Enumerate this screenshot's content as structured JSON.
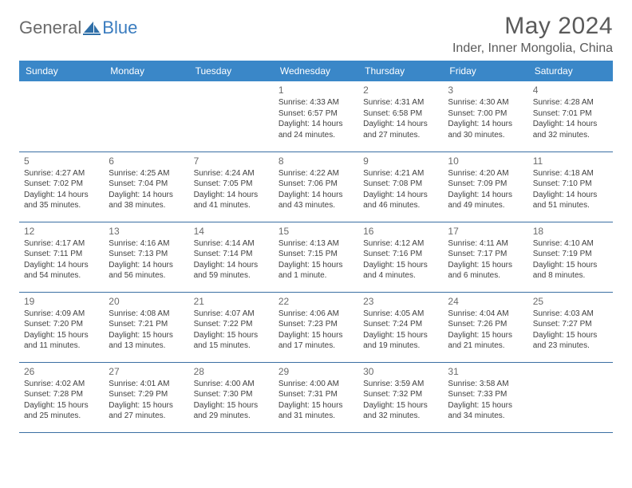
{
  "logo": {
    "part1": "General",
    "part2": "Blue"
  },
  "title": "May 2024",
  "location": "Inder, Inner Mongolia, China",
  "colors": {
    "header_bg": "#3a87c8",
    "header_text": "#ffffff",
    "cell_border": "#3a6fa3",
    "body_text": "#414141",
    "muted_text": "#6a6a6a",
    "logo_gray": "#6a6a6a",
    "logo_blue": "#3a7cbf",
    "page_bg": "#ffffff"
  },
  "day_headers": [
    "Sunday",
    "Monday",
    "Tuesday",
    "Wednesday",
    "Thursday",
    "Friday",
    "Saturday"
  ],
  "weeks": [
    [
      null,
      null,
      null,
      {
        "n": "1",
        "sunrise": "Sunrise: 4:33 AM",
        "sunset": "Sunset: 6:57 PM",
        "day1": "Daylight: 14 hours",
        "day2": "and 24 minutes."
      },
      {
        "n": "2",
        "sunrise": "Sunrise: 4:31 AM",
        "sunset": "Sunset: 6:58 PM",
        "day1": "Daylight: 14 hours",
        "day2": "and 27 minutes."
      },
      {
        "n": "3",
        "sunrise": "Sunrise: 4:30 AM",
        "sunset": "Sunset: 7:00 PM",
        "day1": "Daylight: 14 hours",
        "day2": "and 30 minutes."
      },
      {
        "n": "4",
        "sunrise": "Sunrise: 4:28 AM",
        "sunset": "Sunset: 7:01 PM",
        "day1": "Daylight: 14 hours",
        "day2": "and 32 minutes."
      }
    ],
    [
      {
        "n": "5",
        "sunrise": "Sunrise: 4:27 AM",
        "sunset": "Sunset: 7:02 PM",
        "day1": "Daylight: 14 hours",
        "day2": "and 35 minutes."
      },
      {
        "n": "6",
        "sunrise": "Sunrise: 4:25 AM",
        "sunset": "Sunset: 7:04 PM",
        "day1": "Daylight: 14 hours",
        "day2": "and 38 minutes."
      },
      {
        "n": "7",
        "sunrise": "Sunrise: 4:24 AM",
        "sunset": "Sunset: 7:05 PM",
        "day1": "Daylight: 14 hours",
        "day2": "and 41 minutes."
      },
      {
        "n": "8",
        "sunrise": "Sunrise: 4:22 AM",
        "sunset": "Sunset: 7:06 PM",
        "day1": "Daylight: 14 hours",
        "day2": "and 43 minutes."
      },
      {
        "n": "9",
        "sunrise": "Sunrise: 4:21 AM",
        "sunset": "Sunset: 7:08 PM",
        "day1": "Daylight: 14 hours",
        "day2": "and 46 minutes."
      },
      {
        "n": "10",
        "sunrise": "Sunrise: 4:20 AM",
        "sunset": "Sunset: 7:09 PM",
        "day1": "Daylight: 14 hours",
        "day2": "and 49 minutes."
      },
      {
        "n": "11",
        "sunrise": "Sunrise: 4:18 AM",
        "sunset": "Sunset: 7:10 PM",
        "day1": "Daylight: 14 hours",
        "day2": "and 51 minutes."
      }
    ],
    [
      {
        "n": "12",
        "sunrise": "Sunrise: 4:17 AM",
        "sunset": "Sunset: 7:11 PM",
        "day1": "Daylight: 14 hours",
        "day2": "and 54 minutes."
      },
      {
        "n": "13",
        "sunrise": "Sunrise: 4:16 AM",
        "sunset": "Sunset: 7:13 PM",
        "day1": "Daylight: 14 hours",
        "day2": "and 56 minutes."
      },
      {
        "n": "14",
        "sunrise": "Sunrise: 4:14 AM",
        "sunset": "Sunset: 7:14 PM",
        "day1": "Daylight: 14 hours",
        "day2": "and 59 minutes."
      },
      {
        "n": "15",
        "sunrise": "Sunrise: 4:13 AM",
        "sunset": "Sunset: 7:15 PM",
        "day1": "Daylight: 15 hours",
        "day2": "and 1 minute."
      },
      {
        "n": "16",
        "sunrise": "Sunrise: 4:12 AM",
        "sunset": "Sunset: 7:16 PM",
        "day1": "Daylight: 15 hours",
        "day2": "and 4 minutes."
      },
      {
        "n": "17",
        "sunrise": "Sunrise: 4:11 AM",
        "sunset": "Sunset: 7:17 PM",
        "day1": "Daylight: 15 hours",
        "day2": "and 6 minutes."
      },
      {
        "n": "18",
        "sunrise": "Sunrise: 4:10 AM",
        "sunset": "Sunset: 7:19 PM",
        "day1": "Daylight: 15 hours",
        "day2": "and 8 minutes."
      }
    ],
    [
      {
        "n": "19",
        "sunrise": "Sunrise: 4:09 AM",
        "sunset": "Sunset: 7:20 PM",
        "day1": "Daylight: 15 hours",
        "day2": "and 11 minutes."
      },
      {
        "n": "20",
        "sunrise": "Sunrise: 4:08 AM",
        "sunset": "Sunset: 7:21 PM",
        "day1": "Daylight: 15 hours",
        "day2": "and 13 minutes."
      },
      {
        "n": "21",
        "sunrise": "Sunrise: 4:07 AM",
        "sunset": "Sunset: 7:22 PM",
        "day1": "Daylight: 15 hours",
        "day2": "and 15 minutes."
      },
      {
        "n": "22",
        "sunrise": "Sunrise: 4:06 AM",
        "sunset": "Sunset: 7:23 PM",
        "day1": "Daylight: 15 hours",
        "day2": "and 17 minutes."
      },
      {
        "n": "23",
        "sunrise": "Sunrise: 4:05 AM",
        "sunset": "Sunset: 7:24 PM",
        "day1": "Daylight: 15 hours",
        "day2": "and 19 minutes."
      },
      {
        "n": "24",
        "sunrise": "Sunrise: 4:04 AM",
        "sunset": "Sunset: 7:26 PM",
        "day1": "Daylight: 15 hours",
        "day2": "and 21 minutes."
      },
      {
        "n": "25",
        "sunrise": "Sunrise: 4:03 AM",
        "sunset": "Sunset: 7:27 PM",
        "day1": "Daylight: 15 hours",
        "day2": "and 23 minutes."
      }
    ],
    [
      {
        "n": "26",
        "sunrise": "Sunrise: 4:02 AM",
        "sunset": "Sunset: 7:28 PM",
        "day1": "Daylight: 15 hours",
        "day2": "and 25 minutes."
      },
      {
        "n": "27",
        "sunrise": "Sunrise: 4:01 AM",
        "sunset": "Sunset: 7:29 PM",
        "day1": "Daylight: 15 hours",
        "day2": "and 27 minutes."
      },
      {
        "n": "28",
        "sunrise": "Sunrise: 4:00 AM",
        "sunset": "Sunset: 7:30 PM",
        "day1": "Daylight: 15 hours",
        "day2": "and 29 minutes."
      },
      {
        "n": "29",
        "sunrise": "Sunrise: 4:00 AM",
        "sunset": "Sunset: 7:31 PM",
        "day1": "Daylight: 15 hours",
        "day2": "and 31 minutes."
      },
      {
        "n": "30",
        "sunrise": "Sunrise: 3:59 AM",
        "sunset": "Sunset: 7:32 PM",
        "day1": "Daylight: 15 hours",
        "day2": "and 32 minutes."
      },
      {
        "n": "31",
        "sunrise": "Sunrise: 3:58 AM",
        "sunset": "Sunset: 7:33 PM",
        "day1": "Daylight: 15 hours",
        "day2": "and 34 minutes."
      },
      null
    ]
  ]
}
